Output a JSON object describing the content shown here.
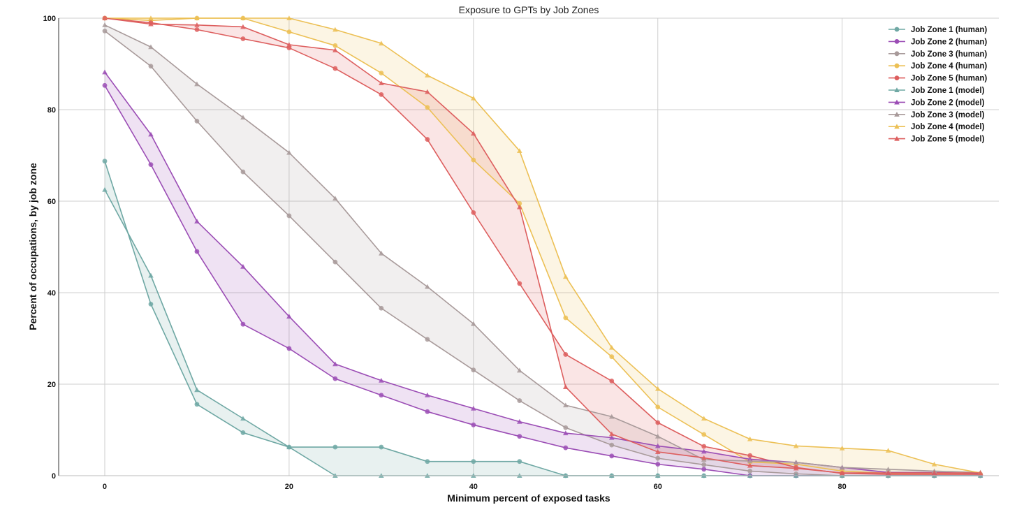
{
  "chart_data": {
    "type": "line",
    "title": "Exposure to GPTs by Job Zones",
    "xlabel": "Minimum percent of exposed tasks",
    "ylabel": "Percent of occupations, by job zone",
    "xlim": [
      -5,
      97
    ],
    "ylim": [
      0,
      100
    ],
    "xticks": [
      0,
      20,
      40,
      60,
      80
    ],
    "yticks": [
      0,
      20,
      40,
      60,
      80,
      100
    ],
    "grid": true,
    "legend_position": "top-right",
    "x": [
      0,
      5,
      10,
      15,
      20,
      25,
      30,
      35,
      40,
      45,
      50,
      55,
      60,
      65,
      70,
      75,
      80,
      85,
      90,
      95
    ],
    "series": [
      {
        "name": "Job Zone 1 (human)",
        "zone": 1,
        "kind": "human",
        "marker": "circle",
        "color": "#6fa8a4",
        "values": [
          68.75,
          37.5,
          15.6,
          9.4,
          6.25,
          6.25,
          6.25,
          3.1,
          3.1,
          3.1,
          0,
          0,
          0,
          0,
          0,
          0,
          0,
          0,
          0,
          0
        ]
      },
      {
        "name": "Job Zone 2 (human)",
        "zone": 2,
        "kind": "human",
        "marker": "circle",
        "color": "#9b4db5",
        "values": [
          85.3,
          68.0,
          49.0,
          33.1,
          27.8,
          21.2,
          17.6,
          14.0,
          11.1,
          8.6,
          6.1,
          4.3,
          2.5,
          1.4,
          0,
          0,
          0,
          0,
          0,
          0
        ]
      },
      {
        "name": "Job Zone 3 (human)",
        "zone": 3,
        "kind": "human",
        "marker": "circle",
        "color": "#a89a9a",
        "values": [
          97.2,
          89.5,
          77.5,
          66.4,
          56.8,
          46.7,
          36.6,
          29.8,
          23.1,
          16.4,
          10.5,
          6.7,
          3.8,
          2.4,
          1.0,
          0.4,
          0,
          0,
          0,
          0
        ]
      },
      {
        "name": "Job Zone 4 (human)",
        "zone": 4,
        "kind": "human",
        "marker": "circle",
        "color": "#ecc055",
        "values": [
          100,
          99.5,
          100,
          100,
          97.0,
          94.0,
          88.0,
          80.5,
          69.0,
          59.5,
          34.5,
          26.0,
          15.0,
          9.0,
          3.0,
          2.5,
          1.0,
          0.5,
          0.5,
          0.3
        ]
      },
      {
        "name": "Job Zone 5 (human)",
        "zone": 5,
        "kind": "human",
        "marker": "circle",
        "color": "#dd5e5e",
        "values": [
          100,
          99.0,
          97.5,
          95.5,
          93.5,
          89.0,
          83.3,
          73.5,
          57.5,
          42.0,
          26.5,
          20.7,
          11.6,
          6.4,
          4.4,
          1.8,
          0.5,
          0.3,
          0.3,
          0.3
        ]
      },
      {
        "name": "Job Zone 1 (model)",
        "zone": 1,
        "kind": "model",
        "marker": "triangle",
        "color": "#6fa8a4",
        "values": [
          62.5,
          43.75,
          18.75,
          12.5,
          6.25,
          0,
          0,
          0,
          0,
          0,
          0,
          0,
          0,
          0,
          0,
          0,
          0,
          0,
          0,
          0
        ]
      },
      {
        "name": "Job Zone 2 (model)",
        "zone": 2,
        "kind": "model",
        "marker": "triangle",
        "color": "#9b4db5",
        "values": [
          88.2,
          74.6,
          55.6,
          45.7,
          34.8,
          24.4,
          20.8,
          17.6,
          14.7,
          11.8,
          9.3,
          8.3,
          6.5,
          5.3,
          3.6,
          2.9,
          1.8,
          0.7,
          0.7,
          0.5
        ]
      },
      {
        "name": "Job Zone 3 (model)",
        "zone": 3,
        "kind": "model",
        "marker": "triangle",
        "color": "#a89a9a",
        "values": [
          98.5,
          93.7,
          85.6,
          78.3,
          70.6,
          60.6,
          48.6,
          41.3,
          33.2,
          23.0,
          15.4,
          12.9,
          8.6,
          3.5,
          3.2,
          2.9,
          1.8,
          1.4,
          1.0,
          0.7
        ]
      },
      {
        "name": "Job Zone 4 (model)",
        "zone": 4,
        "kind": "model",
        "marker": "triangle",
        "color": "#ecc055",
        "values": [
          100,
          100,
          100,
          100,
          100,
          97.5,
          94.5,
          87.5,
          82.5,
          71.0,
          43.5,
          28.0,
          19.0,
          12.5,
          8.0,
          6.5,
          6.0,
          5.5,
          2.5,
          0.6
        ]
      },
      {
        "name": "Job Zone 5 (model)",
        "zone": 5,
        "kind": "model",
        "marker": "triangle",
        "color": "#dd5e5e",
        "values": [
          100,
          98.7,
          98.5,
          98.1,
          94.2,
          93.0,
          85.8,
          83.9,
          74.8,
          58.7,
          19.4,
          9.1,
          5.2,
          3.9,
          2.2,
          1.6,
          0.6,
          0.6,
          0.6,
          0.6
        ]
      }
    ]
  }
}
